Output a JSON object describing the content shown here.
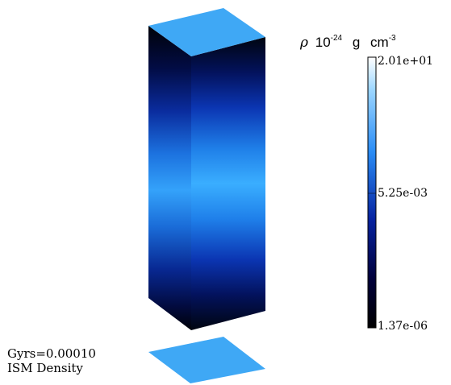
{
  "figure": {
    "time_label": "Gyrs=0.00010",
    "field_label": "ISM Density"
  },
  "colorbar": {
    "title_symbol": "ρ",
    "title_base": "10",
    "title_exp": "-24",
    "title_unit": "g",
    "title_unit2": "cm",
    "title_unit2_exp": "-3",
    "max_label": "2.01e+01",
    "mid_label": "5.25e-03",
    "min_label": "1.37e-06",
    "colormap": [
      "#000000",
      "#00004a",
      "#0a2fb0",
      "#3aaeff",
      "#d6f0ff",
      "#ffffff"
    ]
  },
  "colors": {
    "top_face": "#3fa8f5",
    "slice": "#3fa8f5"
  }
}
